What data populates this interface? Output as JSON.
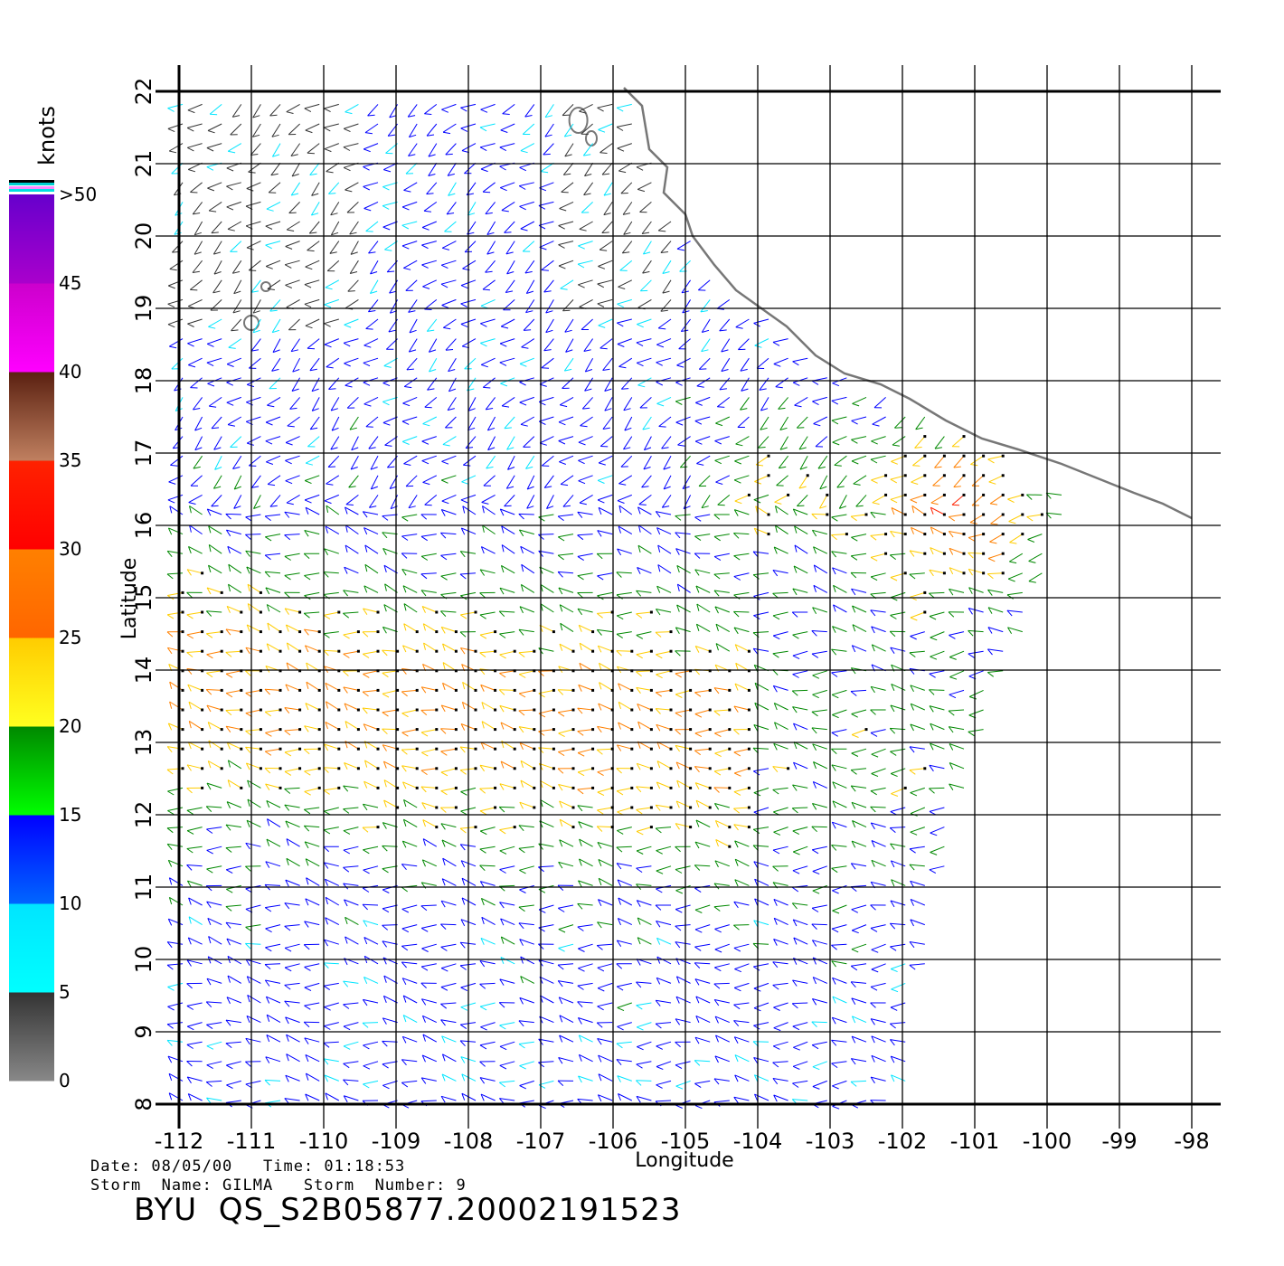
{
  "map": {
    "x_label": "Longitude",
    "y_label": "Latitude",
    "lon_ticks": [
      "-112",
      "-111",
      "-110",
      "-109",
      "-108",
      "-107",
      "-106",
      "-105",
      "-104",
      "-103",
      "-102",
      "-101",
      "-100",
      "-99",
      "-98"
    ],
    "lat_ticks": [
      "8",
      "9",
      "10",
      "11",
      "12",
      "13",
      "14",
      "15",
      "16",
      "17",
      "18",
      "19",
      "20",
      "21",
      "22"
    ],
    "coast_color": "#777777",
    "grid_color": "#000000"
  },
  "legend": {
    "unit": "knots",
    "labels": [
      "0",
      "5",
      "10",
      "15",
      "20",
      "25",
      "30",
      "35",
      "40",
      "45",
      ">50"
    ],
    "bands": [
      {
        "from": 0,
        "to": 5,
        "top": "#333333",
        "bottom": "#888888"
      },
      {
        "from": 5,
        "to": 10,
        "top": "#00e5ff",
        "bottom": "#00ffff"
      },
      {
        "from": 10,
        "to": 15,
        "top": "#0000ff",
        "bottom": "#0066ff"
      },
      {
        "from": 15,
        "to": 20,
        "top": "#008800",
        "bottom": "#00ff00"
      },
      {
        "from": 20,
        "to": 25,
        "top": "#ffcc00",
        "bottom": "#ffff20"
      },
      {
        "from": 25,
        "to": 30,
        "top": "#ff8000",
        "bottom": "#ff6600"
      },
      {
        "from": 30,
        "to": 35,
        "top": "#ff2200",
        "bottom": "#ff0000"
      },
      {
        "from": 35,
        "to": 40,
        "top": "#5a2010",
        "bottom": "#c08060"
      },
      {
        "from": 40,
        "to": 45,
        "top": "#cc00cc",
        "bottom": "#ff00ff"
      },
      {
        "from": 45,
        "to": 50,
        "top": "#6600cc",
        "bottom": "#aa00cc"
      }
    ]
  },
  "info": {
    "date_line": "Date: 08/05/00   Time: 01:18:53",
    "storm_line": "Storm  Name: GILMA   Storm  Number: 9",
    "product": "BYU  QS_S2B05877.20002191523"
  }
}
